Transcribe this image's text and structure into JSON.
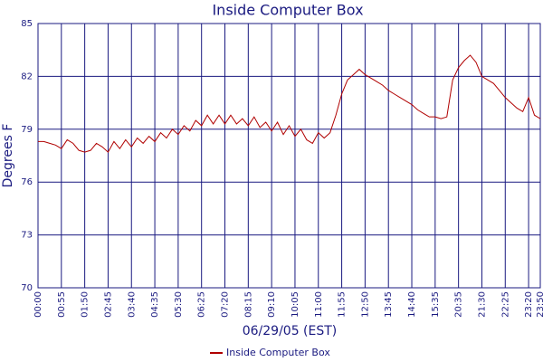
{
  "chart_data": {
    "type": "line",
    "title": "Inside Computer Box",
    "x_label": "06/29/05 (EST)",
    "y_label": "Degrees F",
    "categories": [
      "00:00",
      null,
      null,
      null,
      "00:55",
      null,
      null,
      null,
      "01:50",
      null,
      null,
      null,
      "02:45",
      null,
      null,
      null,
      "03:40",
      null,
      null,
      null,
      "04:35",
      null,
      null,
      null,
      "05:30",
      null,
      null,
      null,
      "06:25",
      null,
      null,
      null,
      "07:20",
      null,
      null,
      null,
      "08:15",
      null,
      null,
      null,
      "09:10",
      null,
      null,
      null,
      "10:05",
      null,
      null,
      null,
      "11:00",
      null,
      null,
      null,
      "11:55",
      null,
      null,
      null,
      "12:50",
      null,
      null,
      null,
      "13:45",
      null,
      null,
      null,
      "14:40",
      null,
      null,
      null,
      "15:35",
      null,
      null,
      null,
      "20:35",
      null,
      null,
      null,
      "21:30",
      null,
      null,
      null,
      "22:25",
      null,
      null,
      null,
      "23:20",
      null,
      "23:50"
    ],
    "series": [
      {
        "name": "Inside Computer Box",
        "color": "#b00000",
        "values": [
          78.3,
          78.3,
          78.2,
          78.1,
          77.9,
          78.4,
          78.2,
          77.8,
          77.7,
          77.8,
          78.2,
          78.0,
          77.7,
          78.3,
          77.9,
          78.4,
          78.0,
          78.5,
          78.2,
          78.6,
          78.3,
          78.8,
          78.5,
          79.0,
          78.7,
          79.2,
          78.9,
          79.5,
          79.2,
          79.8,
          79.3,
          79.8,
          79.3,
          79.8,
          79.3,
          79.6,
          79.2,
          79.7,
          79.1,
          79.4,
          78.9,
          79.4,
          78.7,
          79.2,
          78.6,
          79.0,
          78.4,
          78.2,
          78.8,
          78.5,
          78.8,
          79.8,
          81.0,
          81.8,
          82.1,
          82.4,
          82.1,
          81.9,
          81.7,
          81.5,
          81.2,
          81.0,
          80.8,
          80.6,
          80.4,
          80.1,
          79.9,
          79.7,
          79.7,
          79.6,
          79.7,
          81.8,
          82.5,
          82.9,
          83.2,
          82.8,
          82.0,
          81.8,
          81.6,
          81.2,
          80.8,
          80.5,
          80.2,
          80.0,
          80.8,
          79.8,
          79.6
        ]
      }
    ],
    "ylim": [
      70,
      85
    ],
    "yticks": [
      70,
      73,
      76,
      79,
      82,
      85
    ],
    "grid": true,
    "legend": "bottom"
  }
}
